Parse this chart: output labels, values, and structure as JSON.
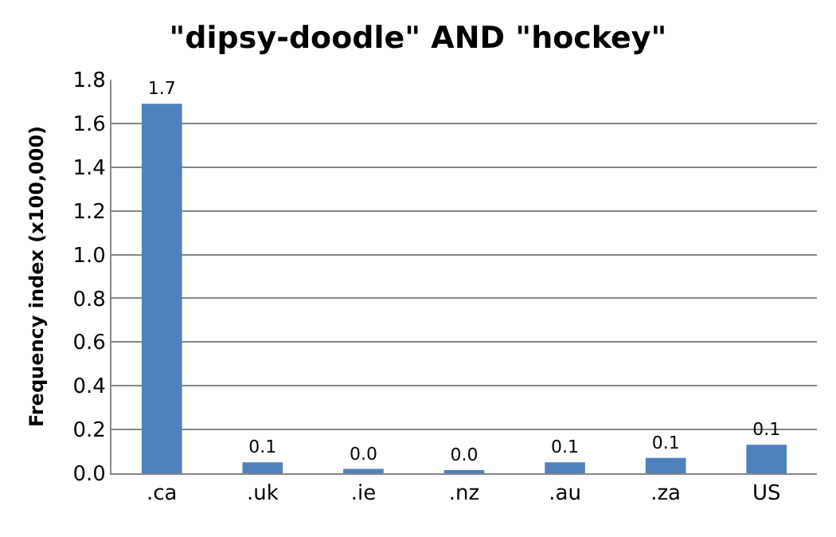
{
  "chart_data": {
    "type": "bar",
    "title": "\"dipsy-doodle\" AND \"hockey\"",
    "ylabel": "Frequency index (x100,000)",
    "categories": [
      ".ca",
      ".uk",
      ".ie",
      ".nz",
      ".au",
      ".za",
      "US"
    ],
    "values": [
      1.69,
      0.05,
      0.02,
      0.01,
      0.05,
      0.07,
      0.13
    ],
    "value_labels": [
      "1.7",
      "0.1",
      "0.0",
      "0.0",
      "0.1",
      "0.1",
      "0.1"
    ],
    "color": "#4f81bd",
    "ylim": [
      0,
      1.8
    ],
    "yticks": [
      {
        "value": 0,
        "label": "0.0"
      },
      {
        "value": 0.2,
        "label": "0.2"
      },
      {
        "value": 0.4,
        "label": "0.4"
      },
      {
        "value": 0.6,
        "label": "0.6"
      },
      {
        "value": 0.8,
        "label": "0.8"
      },
      {
        "value": 1.0,
        "label": "1.0"
      },
      {
        "value": 1.2,
        "label": "1.2"
      },
      {
        "value": 1.4,
        "label": "1.4"
      },
      {
        "value": 1.6,
        "label": "1.6"
      },
      {
        "value": 1.8,
        "label": "1.8"
      }
    ],
    "grid": "y",
    "legend": false
  }
}
